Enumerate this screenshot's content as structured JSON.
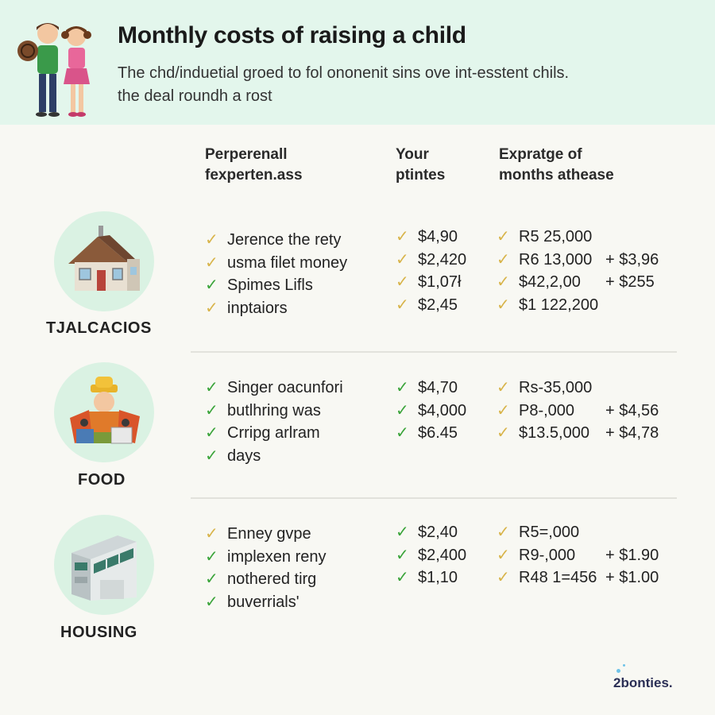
{
  "header": {
    "title": "Monthly costs of raising a child",
    "subtitle_line1": "The chd/induetial groed to fol ononenit sins ove int-esstent chils.",
    "subtitle_line2": "the deal roundh a rost"
  },
  "columns": {
    "personal_line1": "Perperenall",
    "personal_line2": "fexperten.ass",
    "your_line1": "Your",
    "your_line2": "ptintes",
    "expratge_line1": "Expratge of",
    "expratge_line2": "months athease"
  },
  "sections": [
    {
      "label": "TJALCACIOS",
      "icon": "house-icon",
      "items": [
        "Jerence the rety",
        "usma filet money",
        "Spimes Lifls",
        "inptaiors"
      ],
      "your": [
        "$4,90",
        "$2,420",
        "$1,07ł",
        "$2,45"
      ],
      "expratge": [
        "R5 25,000",
        "R6 13,000",
        "$42,2,00",
        "$1 122,200"
      ],
      "extra": [
        "",
        "+ $3,96",
        "+ $255",
        ""
      ]
    },
    {
      "label": "FOOD",
      "icon": "food-basket-icon",
      "items": [
        "Singer oacunfori",
        "butlhring was",
        "Crripg arlram",
        "days"
      ],
      "your": [
        "$4,70",
        "$4,000",
        "$6.45"
      ],
      "expratge": [
        "Rs-35,000",
        "P8-,000",
        "$13.5,000"
      ],
      "extra": [
        "",
        "+ $4,56",
        "+ $4,78"
      ]
    },
    {
      "label": "HOUSING",
      "icon": "building-icon",
      "items": [
        "Enney gvpe",
        "implexen reny",
        "nothered tirg",
        "buverrials'"
      ],
      "your": [
        "$2,40",
        "$2,400",
        "$1,10"
      ],
      "expratge": [
        "R5=,000",
        "R9-,000",
        "R48 1=456"
      ],
      "extra": [
        "",
        "+ $1.90",
        "+ $1.00"
      ]
    }
  ],
  "footer": {
    "logo": "2bonties."
  },
  "colors": {
    "header_bg": "#e3f6ec",
    "circle_bg": "#daf2e3",
    "check_green": "#3aa43a",
    "check_gold": "#d8b44a"
  }
}
